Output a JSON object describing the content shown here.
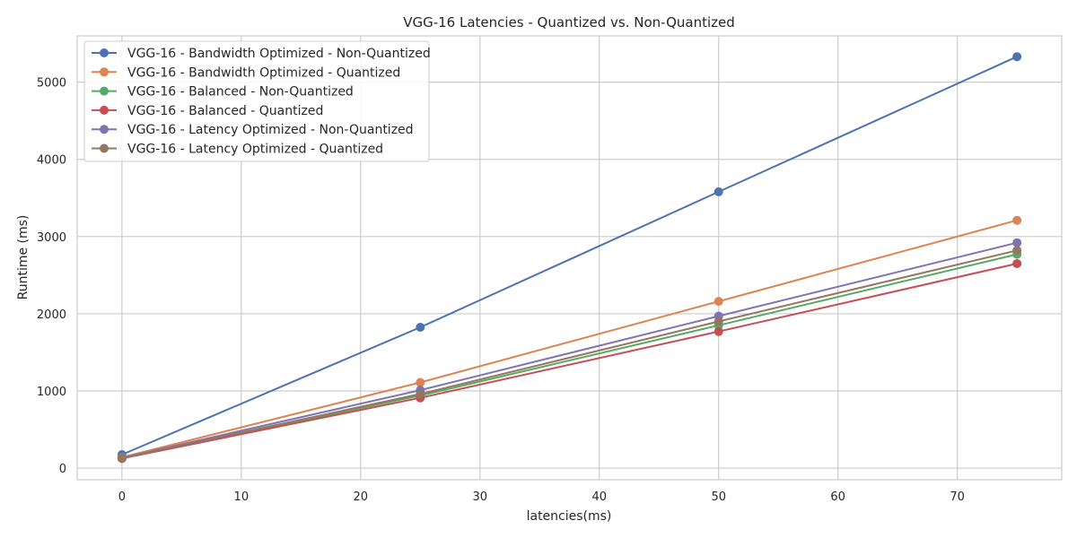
{
  "chart_data": {
    "type": "line",
    "title": "VGG-16 Latencies - Quantized vs. Non-Quantized",
    "xlabel": "latencies(ms)",
    "ylabel": "Runtime (ms)",
    "x": [
      0,
      25,
      50,
      75
    ],
    "xlim": [
      -3.75,
      78.75
    ],
    "ylim": [
      -150,
      5600
    ],
    "xticks": [
      0,
      10,
      20,
      30,
      40,
      50,
      60,
      70
    ],
    "yticks": [
      0,
      1000,
      2000,
      3000,
      4000,
      5000
    ],
    "grid": true,
    "legend_position": "top-left",
    "series": [
      {
        "name": "VGG-16 - Bandwidth Optimized - Non-Quantized",
        "color": "#4c72b0",
        "values": [
          175,
          1825,
          3580,
          5330
        ]
      },
      {
        "name": "VGG-16 - Bandwidth Optimized - Quantized",
        "color": "#dd8452",
        "values": [
          140,
          1110,
          2160,
          3210
        ]
      },
      {
        "name": "VGG-16 - Balanced - Non-Quantized",
        "color": "#55a868",
        "values": [
          130,
          940,
          1850,
          2770
        ]
      },
      {
        "name": "VGG-16 - Balanced - Quantized",
        "color": "#c44e52",
        "values": [
          125,
          910,
          1770,
          2650
        ]
      },
      {
        "name": "VGG-16 - Latency Optimized - Non-Quantized",
        "color": "#8172b3",
        "values": [
          135,
          1010,
          1970,
          2920
        ]
      },
      {
        "name": "VGG-16 - Latency Optimized - Quantized",
        "color": "#937860",
        "values": [
          130,
          960,
          1900,
          2820
        ]
      }
    ]
  }
}
